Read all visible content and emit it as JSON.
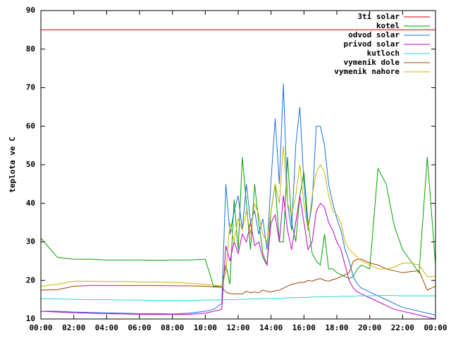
{
  "chart_data": {
    "type": "line",
    "ylabel": "teplota ve C",
    "legend": "top-right",
    "xlim": [
      0,
      24
    ],
    "xticks": [
      {
        "value": 0,
        "label": "00:00"
      },
      {
        "value": 2,
        "label": "02:00"
      },
      {
        "value": 4,
        "label": "04:00"
      },
      {
        "value": 6,
        "label": "06:00"
      },
      {
        "value": 8,
        "label": "08:00"
      },
      {
        "value": 10,
        "label": "10:00"
      },
      {
        "value": 12,
        "label": "12:00"
      },
      {
        "value": 14,
        "label": "14:00"
      },
      {
        "value": 16,
        "label": "16:00"
      },
      {
        "value": 18,
        "label": "18:00"
      },
      {
        "value": 20,
        "label": "20:00"
      },
      {
        "value": 22,
        "label": "22:00"
      },
      {
        "value": 24,
        "label": "00:00"
      }
    ],
    "ylim": [
      10,
      90
    ],
    "yticks": [
      10,
      20,
      30,
      40,
      50,
      60,
      70,
      80,
      90
    ],
    "x": [
      0,
      1,
      2,
      3,
      4,
      5,
      6,
      7,
      8,
      9,
      10,
      10.5,
      11,
      11.25,
      11.5,
      11.75,
      12,
      12.25,
      12.5,
      12.75,
      13,
      13.25,
      13.5,
      13.75,
      14,
      14.25,
      14.5,
      14.75,
      15,
      15.25,
      15.5,
      15.75,
      16,
      16.25,
      16.5,
      16.75,
      17,
      17.25,
      17.5,
      17.75,
      18,
      18.25,
      18.5,
      18.75,
      19,
      19.25,
      19.5,
      20,
      20.5,
      21,
      21.5,
      22,
      22.5,
      23,
      23.5,
      24
    ],
    "series": [
      {
        "name": "3ti solar",
        "color": "#cc0000",
        "values": [
          85,
          85,
          85,
          85,
          85,
          85,
          85,
          85,
          85,
          85,
          85,
          85,
          85,
          85,
          85,
          85,
          85,
          85,
          85,
          85,
          85,
          85,
          85,
          85,
          85,
          85,
          85,
          85,
          85,
          85,
          85,
          85,
          85,
          85,
          85,
          85,
          85,
          85,
          85,
          85,
          85,
          85,
          85,
          85,
          85,
          85,
          85,
          85,
          85,
          85,
          85,
          85,
          85,
          85,
          85,
          85
        ]
      },
      {
        "name": "kotel",
        "color": "#00a000",
        "values": [
          31,
          26,
          25.5,
          25.5,
          25.3,
          25.3,
          25.3,
          25.2,
          25.3,
          25.3,
          25.5,
          18.5,
          18.5,
          24,
          19,
          41,
          28,
          52,
          40,
          28,
          45,
          35,
          27,
          24,
          38,
          45,
          30,
          30,
          52,
          35,
          30,
          42,
          48,
          35,
          27,
          25,
          24,
          32,
          23,
          23,
          22,
          21.5,
          21,
          20.5,
          21,
          23,
          24,
          23,
          49,
          45,
          34,
          28,
          25,
          22,
          52,
          24
        ]
      },
      {
        "name": "odvod solar",
        "color": "#1a6fe0",
        "values": [
          12,
          12,
          11.8,
          11.7,
          11.6,
          11.5,
          11.4,
          11.4,
          11.3,
          11.5,
          12,
          12.5,
          14,
          45,
          32,
          38,
          42,
          33,
          45,
          35,
          38,
          32,
          36,
          28,
          46,
          62,
          45,
          71,
          40,
          33,
          55,
          65,
          45,
          33,
          40,
          60,
          60,
          55,
          45,
          40,
          36,
          33,
          28,
          25,
          21,
          19,
          18,
          17,
          16,
          15,
          14,
          13,
          12.5,
          12,
          11.5,
          11
        ]
      },
      {
        "name": "privod solar",
        "color": "#c000c0",
        "values": [
          12,
          11.8,
          11.6,
          11.5,
          11.4,
          11.3,
          11.2,
          11.2,
          11.2,
          11.2,
          11.5,
          12,
          12.5,
          29,
          25,
          30,
          27,
          32,
          30,
          35,
          29,
          30,
          26,
          24,
          35,
          37,
          30,
          42,
          33,
          28,
          35,
          42,
          35,
          28,
          30,
          38,
          40,
          39,
          35,
          33,
          30,
          28,
          24,
          20,
          18,
          17,
          16.5,
          15.5,
          14.5,
          13.5,
          12.5,
          12,
          11.5,
          11,
          10.5,
          10
        ]
      },
      {
        "name": "kutloch",
        "color": "#20d8d8",
        "values": [
          15.3,
          15.2,
          15.1,
          15,
          15,
          14.9,
          14.9,
          14.8,
          14.8,
          14.8,
          14.9,
          14.9,
          15,
          15,
          15,
          15,
          15.1,
          15.1,
          15.1,
          15.2,
          15.2,
          15.2,
          15.3,
          15.3,
          15.3,
          15.4,
          15.4,
          15.4,
          15.5,
          15.5,
          15.5,
          15.6,
          15.6,
          15.6,
          15.7,
          15.7,
          15.7,
          15.8,
          15.8,
          15.8,
          15.8,
          15.9,
          15.9,
          15.9,
          15.9,
          16,
          16,
          16,
          16.1,
          16.1,
          16.1,
          16,
          16,
          16,
          16,
          16
        ]
      },
      {
        "name": "vymenik dole",
        "color": "#a04000",
        "values": [
          17.5,
          17.6,
          18.5,
          18.7,
          18.7,
          18.7,
          18.7,
          18.7,
          18.6,
          18.6,
          18.5,
          18.3,
          18.2,
          17,
          16.6,
          16.5,
          16.5,
          16.5,
          17.2,
          16.8,
          17,
          16.8,
          17.5,
          17.2,
          17,
          17.3,
          17.5,
          18,
          18.5,
          19,
          19.2,
          19.5,
          19.5,
          20,
          19.8,
          20.2,
          20.5,
          20,
          19.8,
          20.2,
          20.5,
          21,
          21.5,
          22,
          25,
          25.5,
          25.5,
          24.5,
          24,
          23,
          22.5,
          22,
          22.3,
          22.5,
          17.5,
          18.5
        ]
      },
      {
        "name": "vymenik nahore",
        "color": "#c8b400",
        "values": [
          18.5,
          19,
          19.8,
          19.8,
          19.7,
          19.7,
          19.6,
          19.6,
          19.5,
          19.3,
          19,
          18.8,
          18.5,
          22,
          35,
          30,
          36,
          33,
          38,
          32,
          40,
          37,
          32,
          30,
          38,
          45,
          40,
          55,
          40,
          37,
          42,
          50,
          40,
          33,
          42,
          48,
          50,
          48,
          42,
          38,
          37,
          35,
          30,
          28,
          27,
          26,
          25,
          24,
          23,
          23,
          23.5,
          24.5,
          24.5,
          24,
          21,
          21
        ]
      }
    ]
  }
}
